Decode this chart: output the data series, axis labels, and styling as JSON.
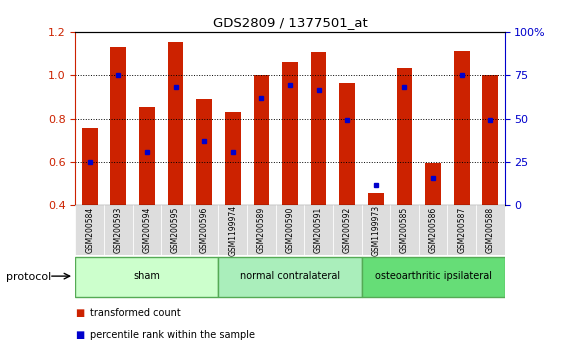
{
  "title": "GDS2809 / 1377501_at",
  "samples": [
    "GSM200584",
    "GSM200593",
    "GSM200594",
    "GSM200595",
    "GSM200596",
    "GSM1199974",
    "GSM200589",
    "GSM200590",
    "GSM200591",
    "GSM200592",
    "GSM1199973",
    "GSM200585",
    "GSM200586",
    "GSM200587",
    "GSM200588"
  ],
  "red_values": [
    0.755,
    1.13,
    0.855,
    1.155,
    0.89,
    0.83,
    1.0,
    1.06,
    1.105,
    0.965,
    0.455,
    1.035,
    0.595,
    1.11,
    1.0
  ],
  "blue_values": [
    0.6,
    1.0,
    0.645,
    0.945,
    0.695,
    0.645,
    0.895,
    0.955,
    0.93,
    0.795,
    0.495,
    0.945,
    0.525,
    1.0,
    0.795
  ],
  "groups": [
    {
      "label": "sham",
      "start": 0,
      "end": 5,
      "color": "#ccffcc",
      "border": "#55aa55"
    },
    {
      "label": "normal contralateral",
      "start": 5,
      "end": 10,
      "color": "#aaeebb",
      "border": "#55aa55"
    },
    {
      "label": "osteoarthritic ipsilateral",
      "start": 10,
      "end": 15,
      "color": "#66dd77",
      "border": "#55aa55"
    }
  ],
  "ylim": [
    0.4,
    1.2
  ],
  "y2lim": [
    0,
    100
  ],
  "yticks": [
    0.4,
    0.6,
    0.8,
    1.0,
    1.2
  ],
  "y2ticks": [
    0,
    25,
    50,
    75,
    100
  ],
  "y2tick_labels": [
    "0",
    "25",
    "50",
    "75",
    "100%"
  ],
  "red_color": "#cc2200",
  "blue_color": "#0000cc",
  "bar_width": 0.55,
  "plot_bg": "#ffffff",
  "tick_label_bg": "#dddddd",
  "legend_red": "transformed count",
  "legend_blue": "percentile rank within the sample",
  "left_axis_color": "#cc2200",
  "right_axis_color": "#0000cc",
  "protocol_label": "protocol"
}
